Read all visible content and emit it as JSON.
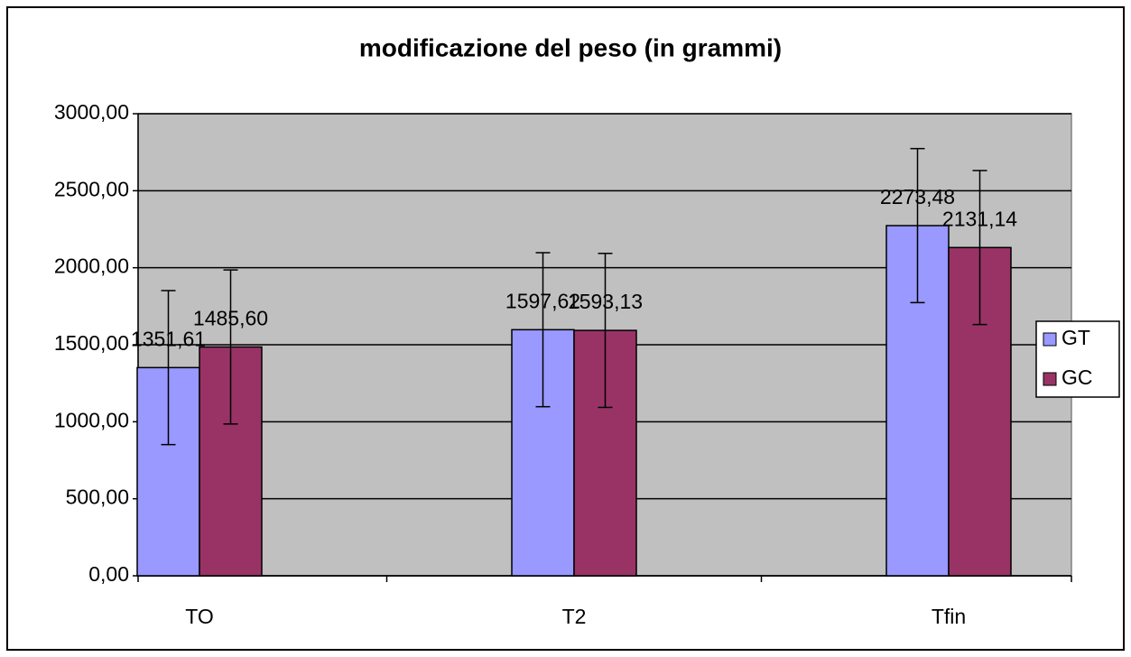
{
  "chart_data": {
    "type": "bar",
    "title": "modificazione del peso (in grammi)",
    "categories": [
      "TO",
      "T2",
      "Tfin"
    ],
    "series": [
      {
        "name": "GT",
        "color": "#9999ff",
        "values": [
          1351.61,
          1597.62,
          2273.48
        ],
        "value_labels": [
          "1351,61",
          "1597,62",
          "2273,48"
        ],
        "errors": [
          500,
          500,
          500
        ]
      },
      {
        "name": "GC",
        "color": "#993366",
        "values": [
          1485.6,
          1593.13,
          2131.14
        ],
        "value_labels": [
          "1485,60",
          "1593,13",
          "2131,14"
        ],
        "errors": [
          500,
          500,
          500
        ]
      }
    ],
    "ylim": [
      0,
      3000
    ],
    "yticks": [
      {
        "value": 0,
        "label": "0,00"
      },
      {
        "value": 500,
        "label": "500,00"
      },
      {
        "value": 1000,
        "label": "1000,00"
      },
      {
        "value": 1500,
        "label": "1500,00"
      },
      {
        "value": 2000,
        "label": "2000,00"
      },
      {
        "value": 2500,
        "label": "2500,00"
      },
      {
        "value": 3000,
        "label": "3000,00"
      }
    ],
    "grid": true,
    "legend": "right",
    "plot_background": "#c0c0c0"
  }
}
